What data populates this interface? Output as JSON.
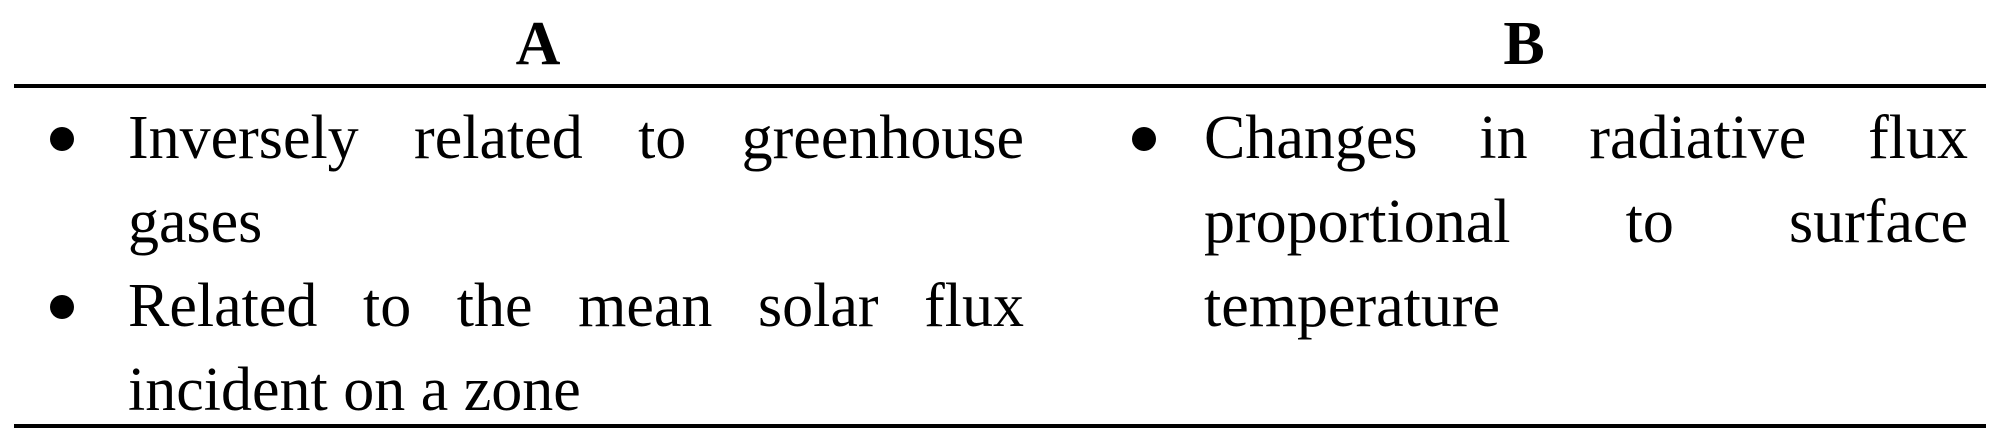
{
  "table": {
    "columns": [
      {
        "header": "A",
        "bullets": [
          "Inversely related to greenhouse gases",
          "Related to the mean solar flux incident on a zone"
        ]
      },
      {
        "header": "B",
        "bullets": [
          "Changes in radiative flux proportional to surface temperature"
        ]
      }
    ]
  }
}
